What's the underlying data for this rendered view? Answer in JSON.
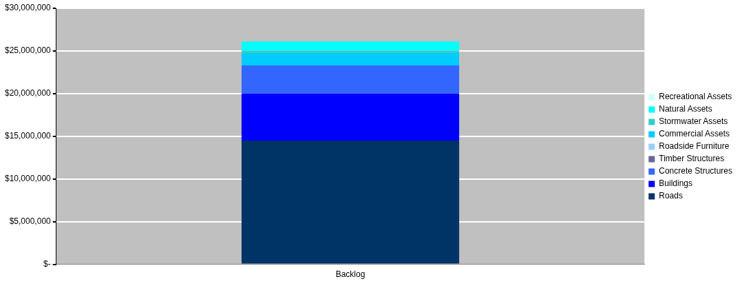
{
  "chart_data": {
    "type": "bar",
    "stacked": true,
    "categories": [
      "Backlog"
    ],
    "series": [
      {
        "name": "Roads",
        "color": "#003366",
        "values": [
          14500000
        ]
      },
      {
        "name": "Buildings",
        "color": "#0000ff",
        "values": [
          5500000
        ]
      },
      {
        "name": "Concrete Structures",
        "color": "#3366ff",
        "values": [
          3300000
        ]
      },
      {
        "name": "Timber Structures",
        "color": "#666699",
        "values": [
          0
        ]
      },
      {
        "name": "Roadside Furniture",
        "color": "#99ccff",
        "values": [
          0
        ]
      },
      {
        "name": "Commercial Assets",
        "color": "#00ccff",
        "values": [
          1450000
        ]
      },
      {
        "name": "Stormwater Assets",
        "color": "#33cccc",
        "values": [
          300000
        ]
      },
      {
        "name": "Natural Assets",
        "color": "#00ffff",
        "values": [
          1050000
        ]
      },
      {
        "name": "Recreational Assets",
        "color": "#ccffff",
        "values": [
          0
        ]
      }
    ],
    "ylim": [
      0,
      30000000
    ],
    "yticks": [
      {
        "value": 0,
        "label": "$-"
      },
      {
        "value": 5000000,
        "label": "$5,000,000"
      },
      {
        "value": 10000000,
        "label": "$10,000,000"
      },
      {
        "value": 15000000,
        "label": "$15,000,000"
      },
      {
        "value": 20000000,
        "label": "$20,000,000"
      },
      {
        "value": 25000000,
        "label": "$25,000,000"
      },
      {
        "value": 30000000,
        "label": "$30,000,000"
      }
    ],
    "grid": "y",
    "legend": "right"
  }
}
